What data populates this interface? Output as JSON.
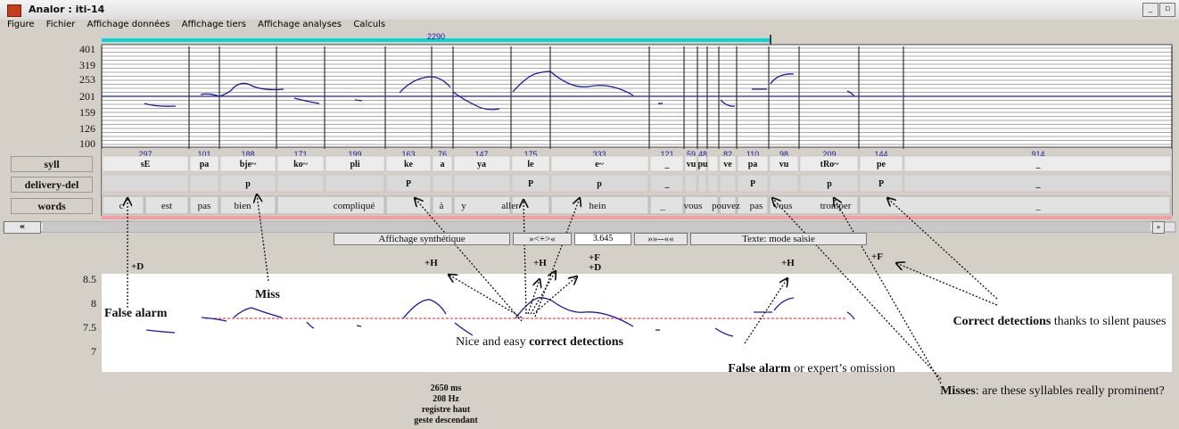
{
  "window": {
    "title": "Analor : iti-14",
    "minimize_glyph": "_",
    "restore_glyph": "▫"
  },
  "menu": [
    "Figure",
    "Fichier",
    "Affichage données",
    "Affichage tiers",
    "Affichage analyses",
    "Calculs"
  ],
  "top_bar": {
    "value": "2290",
    "color": "#00d8d8"
  },
  "pitch_axis": {
    "ticks": [
      "401",
      "319",
      "253",
      "201",
      "159",
      "126",
      "100"
    ]
  },
  "row_labels": {
    "syll": "syll",
    "delivery": "delivery-del",
    "words": "words"
  },
  "durations": [
    "297",
    "101",
    "188",
    "171",
    "199",
    "163",
    "76",
    "147",
    "175",
    "333",
    "121",
    "59",
    "48",
    "82",
    "110",
    "98",
    "209",
    "144",
    "914"
  ],
  "syllables": [
    "sE",
    "pa",
    "bje~",
    "ko~",
    "pli",
    "ke",
    "a",
    "ya",
    "le",
    "e~",
    "_",
    "vu",
    "pu",
    "ve",
    "pa",
    "vu",
    "tRo~",
    "pe",
    "_"
  ],
  "delivery": [
    "",
    "",
    "p",
    "",
    "",
    "P",
    "",
    "",
    "P",
    "p",
    "_",
    "",
    "",
    "",
    "P",
    "",
    "p",
    "P",
    "_"
  ],
  "words": [
    "c'",
    "est",
    "pas",
    "bien",
    "compliqué",
    "à",
    "y",
    "aller",
    "hein",
    "_",
    "vous",
    "pouvez",
    "pas",
    "vous",
    "tromper",
    "_"
  ],
  "controls": {
    "scroll_left": "«",
    "scroll_right": "»",
    "display_button": "Affichage synthétique",
    "zoom_in_button": "»<+>«",
    "zoom_value": "3.645",
    "zoom_out_button": "»»--««",
    "text_mode_button": "Texte: mode saisie"
  },
  "lower_axis": {
    "ticks": [
      "8.5",
      "8",
      "7.5",
      "7"
    ]
  },
  "cue_labels": {
    "d1": "+D",
    "h1": "+H",
    "h2": "+H",
    "fd_f": "+F",
    "fd_d": "+D",
    "h3": "+H",
    "f2": "+F"
  },
  "annotations": {
    "false_alarm": "False alarm",
    "miss": "Miss",
    "nice_plain": "Nice and easy ",
    "nice_bold": "correct detections",
    "expert_bold": "False alarm",
    "expert_plain": " or expert’s omission",
    "misses_bold": "Misses",
    "misses_plain": ": are these syllables really prominent?",
    "correct_bold": "Correct detections",
    "correct_plain": " thanks to silent pauses"
  },
  "info": [
    "2650 ms",
    "208 Hz",
    "registre haut",
    "geste descendant"
  ],
  "colors": {
    "pitch": "#1a1aa0",
    "reference_line": "#e02020",
    "duration_text": "#1a1aa0",
    "pink_bar": "#f0a0a0"
  }
}
